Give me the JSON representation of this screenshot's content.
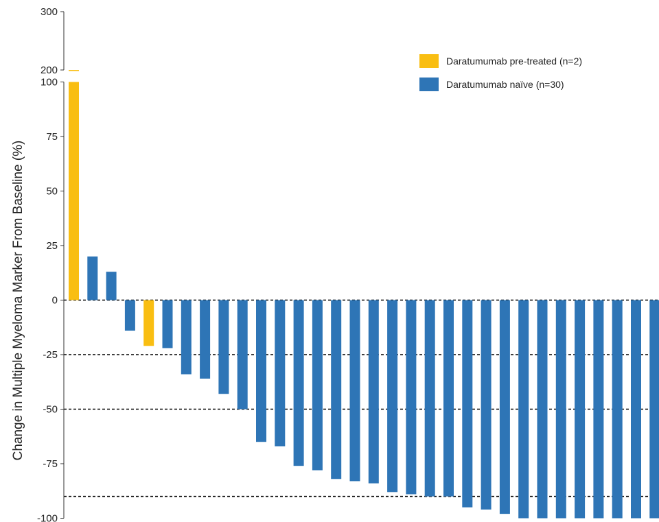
{
  "chart_data": {
    "type": "bar",
    "title": "",
    "xlabel": "",
    "ylabel": "Change in Multiple Myeloma Marker From Baseline (%)",
    "ylim": [
      -100,
      300
    ],
    "axis_break": {
      "lower_segment": [
        -100,
        100
      ],
      "upper_segment": [
        200,
        300
      ]
    },
    "y_ticks": [
      "300",
      "200",
      "100",
      "75",
      "50",
      "25",
      "0",
      "-25",
      "-50",
      "-75",
      "-100"
    ],
    "reference_lines": [
      0,
      -25,
      -50,
      -90
    ],
    "grid": false,
    "legend_position": "top-right",
    "colors": {
      "pre_treated": "#F9BE12",
      "naive": "#2E75B6"
    },
    "legend": [
      {
        "label": "Daratumumab pre-treated (n=2)",
        "color": "#F9BE12"
      },
      {
        "label": "Daratumumab naïve (n=30)",
        "color": "#2E75B6"
      }
    ],
    "bars": [
      {
        "value": 200,
        "group": "pre_treated"
      },
      {
        "value": 20,
        "group": "naive"
      },
      {
        "value": 13,
        "group": "naive"
      },
      {
        "value": -14,
        "group": "naive"
      },
      {
        "value": -21,
        "group": "pre_treated"
      },
      {
        "value": -22,
        "group": "naive"
      },
      {
        "value": -34,
        "group": "naive"
      },
      {
        "value": -36,
        "group": "naive"
      },
      {
        "value": -43,
        "group": "naive"
      },
      {
        "value": -50,
        "group": "naive"
      },
      {
        "value": -65,
        "group": "naive"
      },
      {
        "value": -67,
        "group": "naive"
      },
      {
        "value": -76,
        "group": "naive"
      },
      {
        "value": -78,
        "group": "naive"
      },
      {
        "value": -82,
        "group": "naive"
      },
      {
        "value": -83,
        "group": "naive"
      },
      {
        "value": -84,
        "group": "naive"
      },
      {
        "value": -88,
        "group": "naive"
      },
      {
        "value": -89,
        "group": "naive"
      },
      {
        "value": -90,
        "group": "naive"
      },
      {
        "value": -90,
        "group": "naive"
      },
      {
        "value": -95,
        "group": "naive"
      },
      {
        "value": -96,
        "group": "naive"
      },
      {
        "value": -98,
        "group": "naive"
      },
      {
        "value": -100,
        "group": "naive"
      },
      {
        "value": -100,
        "group": "naive"
      },
      {
        "value": -100,
        "group": "naive"
      },
      {
        "value": -100,
        "group": "naive"
      },
      {
        "value": -100,
        "group": "naive"
      },
      {
        "value": -100,
        "group": "naive"
      },
      {
        "value": -100,
        "group": "naive"
      },
      {
        "value": -100,
        "group": "naive"
      }
    ]
  }
}
